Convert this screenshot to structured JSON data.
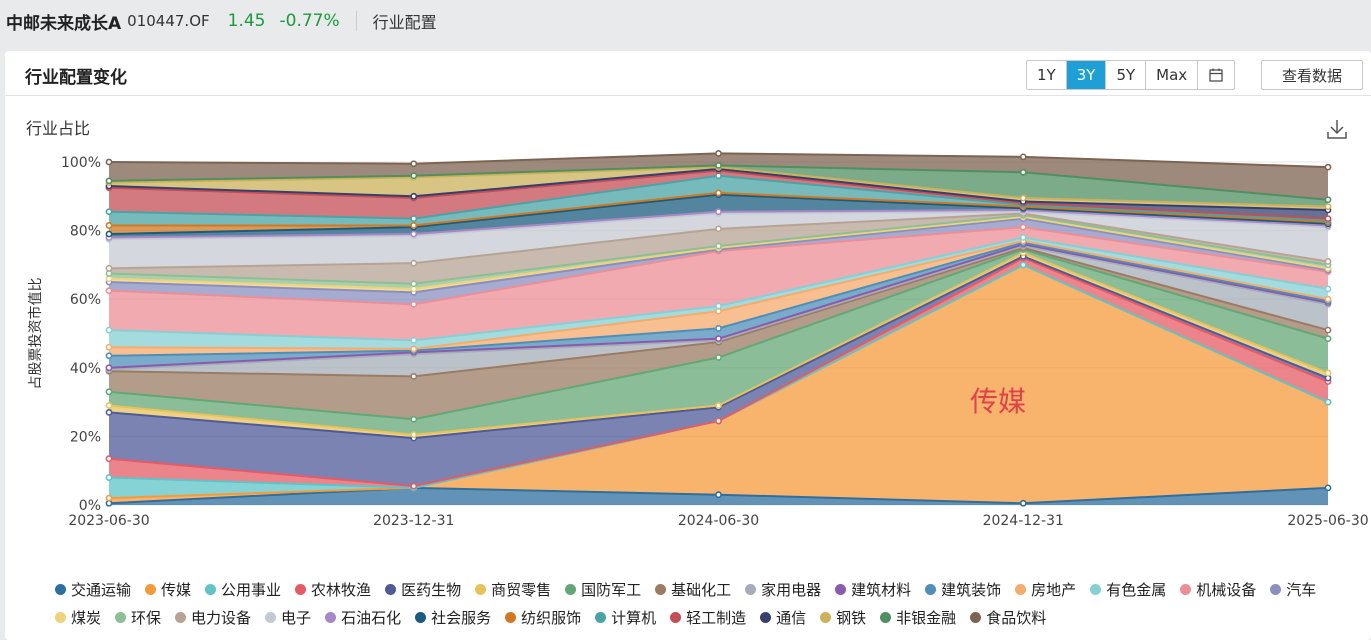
{
  "header": {
    "fund_name": "中邮未来成长A",
    "fund_code": "010447.OF",
    "price": "1.45",
    "change": "-0.77%",
    "page": "行业配置"
  },
  "card": {
    "title": "行业配置变化",
    "range_buttons": [
      "1Y",
      "3Y",
      "5Y",
      "Max"
    ],
    "active_range": "3Y",
    "calendar_icon": "calendar-icon",
    "view_data_label": "查看数据",
    "download_icon": "download-icon"
  },
  "colors": {
    "accent": "#1e9fd6",
    "price_green": "#1a9a3a",
    "annotation_red": "#e0424a"
  },
  "chart_data": {
    "type": "area",
    "stacked": true,
    "title": "行业占比",
    "ylabel": "占股票投资市值比",
    "ylim": [
      0,
      100
    ],
    "ytick_labels": [
      "0%",
      "20%",
      "40%",
      "60%",
      "80%",
      "100%"
    ],
    "x": [
      "2023-06-30",
      "2023-12-31",
      "2024-06-30",
      "2024-12-31",
      "2025-06-30"
    ],
    "annotation": "传媒",
    "legend_position": "bottom",
    "series": [
      {
        "name": "交通运输",
        "color": "#2e6f9e",
        "values": [
          0.5,
          5,
          3,
          0.5,
          5
        ]
      },
      {
        "name": "传媒",
        "color": "#f59a3b",
        "values": [
          1.5,
          0,
          21.5,
          69.5,
          25
        ]
      },
      {
        "name": "公用事业",
        "color": "#5ec4c8",
        "values": [
          6,
          0,
          0,
          0,
          0
        ]
      },
      {
        "name": "农林牧渔",
        "color": "#e55b64",
        "values": [
          5.5,
          0.5,
          0,
          2,
          6
        ]
      },
      {
        "name": "医药生物",
        "color": "#4f5a99",
        "values": [
          13.5,
          14,
          4,
          0.5,
          1
        ]
      },
      {
        "name": "商贸零售",
        "color": "#e7c25c",
        "values": [
          2,
          1,
          0.5,
          1,
          1.5
        ]
      },
      {
        "name": "国防军工",
        "color": "#63a776",
        "values": [
          4,
          4.5,
          14,
          1,
          10
        ]
      },
      {
        "name": "基础化工",
        "color": "#9b7b63",
        "values": [
          6,
          12.5,
          4.5,
          0.5,
          2.5
        ]
      },
      {
        "name": "家用电器",
        "color": "#a5adb8",
        "values": [
          0.5,
          6.5,
          0.5,
          0.5,
          7.5
        ]
      },
      {
        "name": "建筑材料",
        "color": "#8a5aae",
        "values": [
          0.5,
          0.5,
          0.5,
          0.5,
          0.5
        ]
      },
      {
        "name": "建筑装饰",
        "color": "#4e8fb8",
        "values": [
          3.5,
          0.5,
          3,
          0.5,
          0.5
        ]
      },
      {
        "name": "房地产",
        "color": "#f5ab6b",
        "values": [
          2.5,
          0.5,
          5,
          0.5,
          0.5
        ]
      },
      {
        "name": "有色金属",
        "color": "#86cfd3",
        "values": [
          5,
          2.5,
          1.5,
          1,
          3
        ]
      },
      {
        "name": "机械设备",
        "color": "#ec8e96",
        "values": [
          11.5,
          10.5,
          16,
          3,
          5
        ]
      },
      {
        "name": "汽车",
        "color": "#8a8fbf",
        "values": [
          2.5,
          3.5,
          0.5,
          2.5,
          0.5
        ]
      },
      {
        "name": "煤炭",
        "color": "#efd27c",
        "values": [
          1,
          1,
          0.5,
          0.5,
          0.5
        ]
      },
      {
        "name": "环保",
        "color": "#8dbf94",
        "values": [
          1.5,
          1.5,
          0.5,
          0.5,
          1
        ]
      },
      {
        "name": "电力设备",
        "color": "#b7a394",
        "values": [
          1.5,
          6,
          5,
          0.5,
          1
        ]
      },
      {
        "name": "电子",
        "color": "#c5cad2",
        "values": [
          8.5,
          8,
          4.5,
          0.5,
          10
        ]
      },
      {
        "name": "石油石化",
        "color": "#a887c9",
        "values": [
          0.5,
          0.5,
          0.5,
          0.5,
          0.5
        ]
      },
      {
        "name": "社会服务",
        "color": "#1b5c7e",
        "values": [
          1,
          2,
          5,
          0.5,
          0.5
        ]
      },
      {
        "name": "纺织服饰",
        "color": "#d07822",
        "values": [
          2.5,
          0.5,
          0.5,
          0.5,
          0.5
        ]
      },
      {
        "name": "计算机",
        "color": "#4aa3a6",
        "values": [
          4,
          2,
          5,
          0.5,
          0.5
        ]
      },
      {
        "name": "轻工制造",
        "color": "#c44d56",
        "values": [
          7,
          6,
          1.5,
          0.5,
          0.5
        ]
      },
      {
        "name": "通信",
        "color": "#36406f",
        "values": [
          0.5,
          0.5,
          0.5,
          0.5,
          2.5
        ]
      },
      {
        "name": "钢铁",
        "color": "#cbb25a",
        "values": [
          1,
          5.5,
          0.5,
          1,
          1
        ]
      },
      {
        "name": "非银金融",
        "color": "#4f8f62",
        "values": [
          0.5,
          0.5,
          0.5,
          7.5,
          2
        ]
      },
      {
        "name": "食品饮料",
        "color": "#7d6352",
        "values": [
          5.5,
          3.5,
          3.5,
          4.5,
          9.5
        ]
      }
    ]
  }
}
